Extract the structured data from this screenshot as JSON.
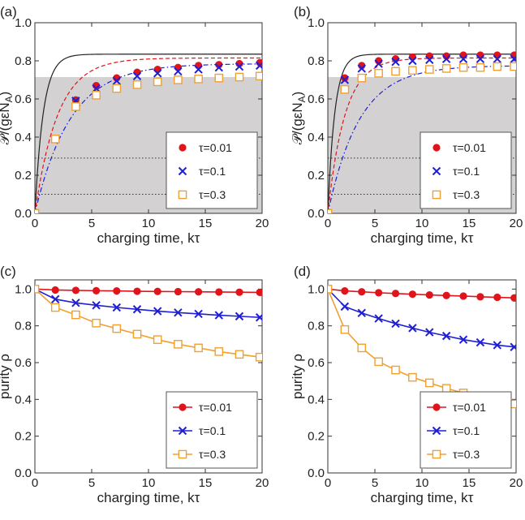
{
  "colors": {
    "red": "#e0141b",
    "blue": "#1f1fd6",
    "orange": "#f0a030",
    "black": "#222222",
    "shade": "#d4d1d2"
  },
  "chart_data": [
    {
      "panel_label": "(a)",
      "type": "line",
      "xlabel": "charging time, kτ",
      "ylabel": "𝒫/(gεN",
      "ylabel_sub": "A",
      "ylabel_close": ")",
      "xlim": [
        0,
        20
      ],
      "ylim": [
        0,
        1
      ],
      "xticks": [
        "0",
        "5",
        "10",
        "15",
        "20"
      ],
      "yticks": [
        "0.0",
        "0.2",
        "0.4",
        "0.6",
        "0.8",
        "1.0"
      ],
      "shaded_band": [
        0,
        0.715
      ],
      "dotted_levels": [
        0.29,
        0.1
      ],
      "legend_position": "bottom-right",
      "curves": [
        {
          "style": "solid",
          "color": "black",
          "p_max": 0.835,
          "rate": 1.35
        },
        {
          "style": "dashed",
          "color": "red",
          "p_max": 0.815,
          "rate": 0.5
        },
        {
          "style": "dashdot",
          "color": "blue",
          "p_max": 0.785,
          "rate": 0.32
        }
      ],
      "x": [
        0,
        1.8,
        3.6,
        5.4,
        7.2,
        9.0,
        10.8,
        12.6,
        14.4,
        16.2,
        18.0,
        19.8
      ],
      "series": [
        {
          "name": "τ=0.01",
          "marker": "circle",
          "color": "red",
          "values": [
            0.0,
            0.39,
            0.595,
            0.67,
            0.71,
            0.74,
            0.755,
            0.765,
            0.775,
            0.78,
            0.785,
            0.79
          ]
        },
        {
          "name": "τ=0.1",
          "marker": "cross",
          "color": "blue",
          "values": [
            0.0,
            0.39,
            0.59,
            0.655,
            0.695,
            0.72,
            0.735,
            0.745,
            0.755,
            0.765,
            0.77,
            0.775
          ]
        },
        {
          "name": "τ=0.3",
          "marker": "square",
          "color": "orange",
          "values": [
            0.0,
            0.39,
            0.56,
            0.62,
            0.655,
            0.675,
            0.69,
            0.7,
            0.705,
            0.71,
            0.715,
            0.72
          ]
        }
      ]
    },
    {
      "panel_label": "(b)",
      "type": "line",
      "xlabel": "charging time, kτ",
      "ylabel": "𝒫/(gεN",
      "ylabel_sub": "A",
      "ylabel_close": ")",
      "xlim": [
        0,
        20
      ],
      "ylim": [
        0,
        1
      ],
      "xticks": [
        "0",
        "5",
        "10",
        "15",
        "20"
      ],
      "yticks": [
        "0.0",
        "0.2",
        "0.4",
        "0.6",
        "0.8",
        "1.0"
      ],
      "shaded_band": [
        0,
        0.715
      ],
      "dotted_levels": [
        0.29,
        0.1
      ],
      "legend_position": "bottom-right",
      "curves": [
        {
          "style": "solid",
          "color": "black",
          "p_max": 0.835,
          "rate": 1.35
        },
        {
          "style": "dashed",
          "color": "red",
          "p_max": 0.815,
          "rate": 0.55
        },
        {
          "style": "dashdot",
          "color": "blue",
          "p_max": 0.775,
          "rate": 0.3
        }
      ],
      "x": [
        0,
        1.8,
        3.6,
        5.4,
        7.2,
        9.0,
        10.8,
        12.6,
        14.4,
        16.2,
        18.0,
        19.8
      ],
      "series": [
        {
          "name": "τ=0.01",
          "marker": "circle",
          "color": "red",
          "values": [
            0.0,
            0.71,
            0.775,
            0.8,
            0.81,
            0.82,
            0.825,
            0.825,
            0.83,
            0.83,
            0.83,
            0.83
          ]
        },
        {
          "name": "τ=0.1",
          "marker": "cross",
          "color": "blue",
          "values": [
            0.0,
            0.7,
            0.76,
            0.785,
            0.795,
            0.8,
            0.805,
            0.81,
            0.81,
            0.81,
            0.81,
            0.81
          ]
        },
        {
          "name": "τ=0.3",
          "marker": "square",
          "color": "orange",
          "values": [
            0.0,
            0.65,
            0.71,
            0.735,
            0.745,
            0.75,
            0.755,
            0.76,
            0.765,
            0.765,
            0.77,
            0.77
          ]
        }
      ]
    },
    {
      "panel_label": "(c)",
      "type": "line",
      "xlabel": "charging time, kτ",
      "ylabel": "purity ρ",
      "xlim": [
        0,
        20
      ],
      "ylim": [
        0,
        1.05
      ],
      "xticks": [
        "0",
        "5",
        "10",
        "15",
        "20"
      ],
      "yticks": [
        "0.0",
        "0.2",
        "0.4",
        "0.6",
        "0.8",
        "1.0"
      ],
      "legend_position": "bottom-right",
      "x": [
        0,
        1.8,
        3.6,
        5.4,
        7.2,
        9.0,
        10.8,
        12.6,
        14.4,
        16.2,
        18.0,
        19.8
      ],
      "series": [
        {
          "name": "τ=0.01",
          "marker": "circle",
          "color": "red",
          "values": [
            1.0,
            0.995,
            0.993,
            0.991,
            0.99,
            0.988,
            0.987,
            0.986,
            0.985,
            0.984,
            0.983,
            0.982
          ]
        },
        {
          "name": "τ=0.1",
          "marker": "cross",
          "color": "blue",
          "values": [
            1.0,
            0.945,
            0.925,
            0.912,
            0.9,
            0.89,
            0.88,
            0.872,
            0.865,
            0.858,
            0.852,
            0.846
          ]
        },
        {
          "name": "τ=0.3",
          "marker": "square",
          "color": "orange",
          "values": [
            1.0,
            0.9,
            0.86,
            0.815,
            0.785,
            0.755,
            0.725,
            0.7,
            0.68,
            0.66,
            0.645,
            0.63
          ]
        }
      ]
    },
    {
      "panel_label": "(d)",
      "type": "line",
      "xlabel": "charging time, kτ",
      "ylabel": "purity ρ",
      "xlim": [
        0,
        20
      ],
      "ylim": [
        0,
        1.05
      ],
      "xticks": [
        "0",
        "5",
        "10",
        "15",
        "20"
      ],
      "yticks": [
        "0.0",
        "0.2",
        "0.4",
        "0.6",
        "0.8",
        "1.0"
      ],
      "legend_position": "bottom-right",
      "x": [
        0,
        1.8,
        3.6,
        5.4,
        7.2,
        9.0,
        10.8,
        12.6,
        14.4,
        16.2,
        18.0,
        19.8
      ],
      "series": [
        {
          "name": "τ=0.01",
          "marker": "circle",
          "color": "red",
          "values": [
            1.0,
            0.99,
            0.985,
            0.98,
            0.976,
            0.972,
            0.968,
            0.965,
            0.962,
            0.958,
            0.955,
            0.952
          ]
        },
        {
          "name": "τ=0.1",
          "marker": "cross",
          "color": "blue",
          "values": [
            1.0,
            0.905,
            0.87,
            0.84,
            0.812,
            0.788,
            0.765,
            0.745,
            0.725,
            0.71,
            0.695,
            0.685
          ]
        },
        {
          "name": "τ=0.3",
          "marker": "square",
          "color": "orange",
          "values": [
            1.0,
            0.78,
            0.68,
            0.605,
            0.56,
            0.52,
            0.49,
            0.46,
            0.435,
            0.415,
            0.395,
            0.375
          ]
        }
      ]
    }
  ]
}
